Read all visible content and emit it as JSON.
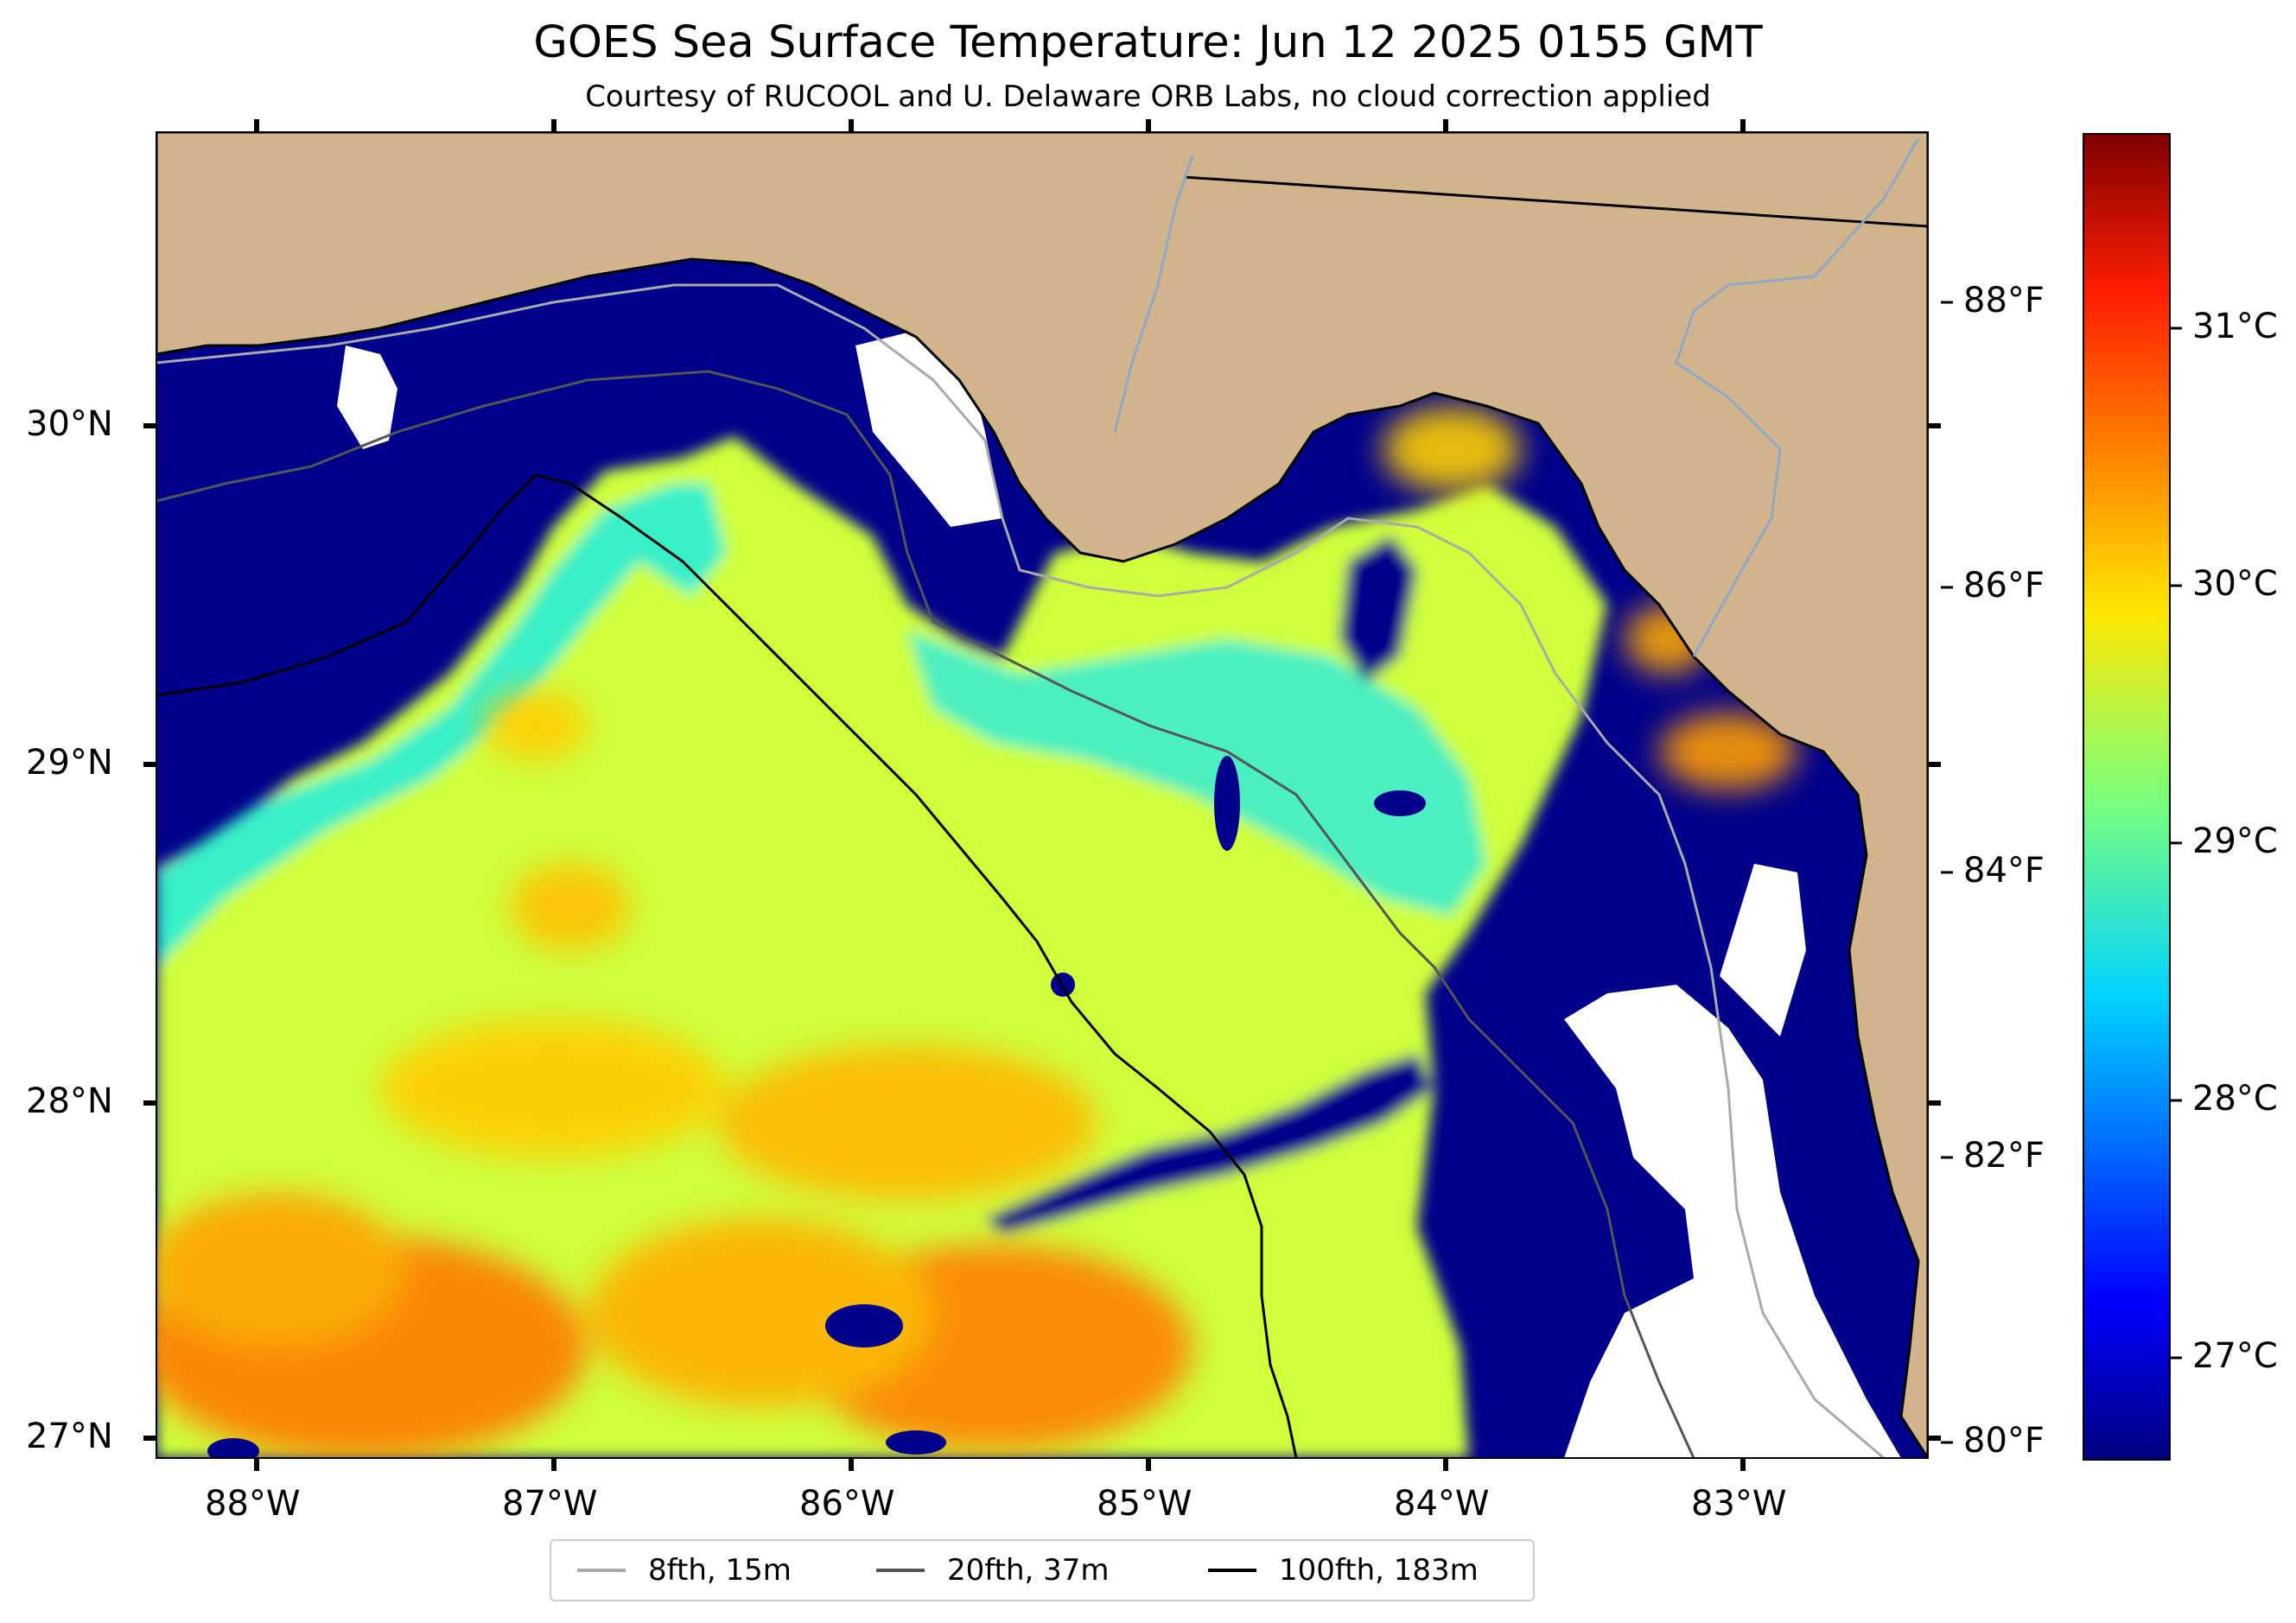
{
  "title": "GOES Sea Surface Temperature: Jun 12 2025 0155 GMT",
  "subtitle": "Courtesy of RUCOOL and U. Delaware ORB Labs, no cloud correction applied",
  "map": {
    "lon_labels": [
      "88°W",
      "87°W",
      "86°W",
      "85°W",
      "84°W",
      "83°W"
    ],
    "lat_labels": [
      "30°N",
      "29°N",
      "28°N",
      "27°N"
    ],
    "colors": {
      "land": "#d2b48c",
      "no_data": "#ffffff",
      "coldest_water": "#00008b"
    }
  },
  "colorbar": {
    "celsius_labels": [
      "31°C",
      "30°C",
      "29°C",
      "28°C",
      "27°C"
    ],
    "fahrenheit_labels": [
      "88°F",
      "86°F",
      "84°F",
      "82°F",
      "80°F"
    ],
    "colormap": "jet"
  },
  "legend": {
    "items": [
      {
        "label": "8fth, 15m",
        "color": "#aaaaaa"
      },
      {
        "label": "20fth, 37m",
        "color": "#555555"
      },
      {
        "label": "100fth, 183m",
        "color": "#000000"
      }
    ]
  }
}
